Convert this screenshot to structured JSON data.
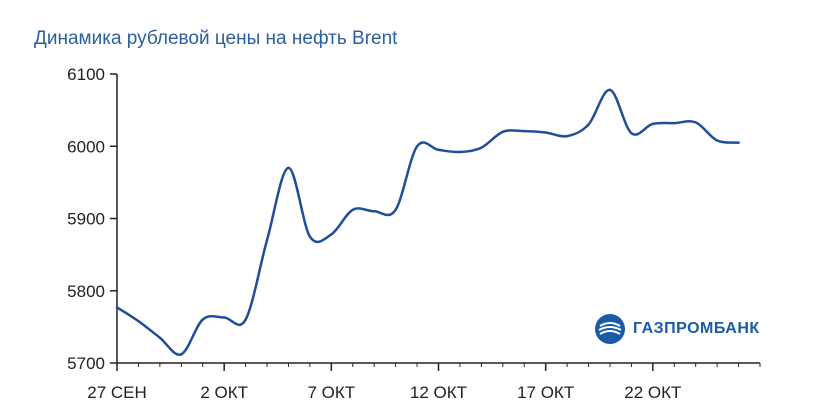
{
  "chart_data": {
    "type": "line",
    "title": "Динамика рублевой цены на нефть Brent",
    "xlabel": "",
    "ylabel": "",
    "ylim": [
      5700,
      6100
    ],
    "yticks": [
      5700,
      5800,
      5900,
      6000,
      6100
    ],
    "xlim": [
      "2025-09-27",
      "2025-10-27"
    ],
    "xticks": [
      {
        "date": "2025-09-27",
        "label": "27 СЕН"
      },
      {
        "date": "2025-10-02",
        "label": "2 ОКТ"
      },
      {
        "date": "2025-10-07",
        "label": "7 ОКТ"
      },
      {
        "date": "2025-10-12",
        "label": "12 ОКТ"
      },
      {
        "date": "2025-10-17",
        "label": "17 ОКТ"
      },
      {
        "date": "2025-10-22",
        "label": "22 ОКТ"
      }
    ],
    "grid": false,
    "legend": "none",
    "series": [
      {
        "color": "#1f4e9a",
        "x": [
          "2025-09-27",
          "2025-09-28",
          "2025-09-29",
          "2025-09-30",
          "2025-10-01",
          "2025-10-02",
          "2025-10-03",
          "2025-10-04",
          "2025-10-05",
          "2025-10-06",
          "2025-10-07",
          "2025-10-08",
          "2025-10-09",
          "2025-10-10",
          "2025-10-11",
          "2025-10-12",
          "2025-10-13",
          "2025-10-14",
          "2025-10-15",
          "2025-10-16",
          "2025-10-17",
          "2025-10-18",
          "2025-10-19",
          "2025-10-20",
          "2025-10-21",
          "2025-10-22",
          "2025-10-23",
          "2025-10-24",
          "2025-10-25",
          "2025-10-26"
        ],
        "values": [
          5777,
          5758,
          5735,
          5712,
          5760,
          5763,
          5760,
          5870,
          5970,
          5875,
          5878,
          5912,
          5910,
          5912,
          6000,
          5995,
          5992,
          5998,
          6020,
          6021,
          6019,
          6014,
          6030,
          6078,
          6018,
          6031,
          6032,
          6033,
          6008,
          6005
        ]
      }
    ]
  },
  "branding": {
    "logo_text": "ГАЗПРОМБАНК",
    "logo_color": "#1a5aa6",
    "logo_icon": "gazprombank-logo-icon"
  }
}
